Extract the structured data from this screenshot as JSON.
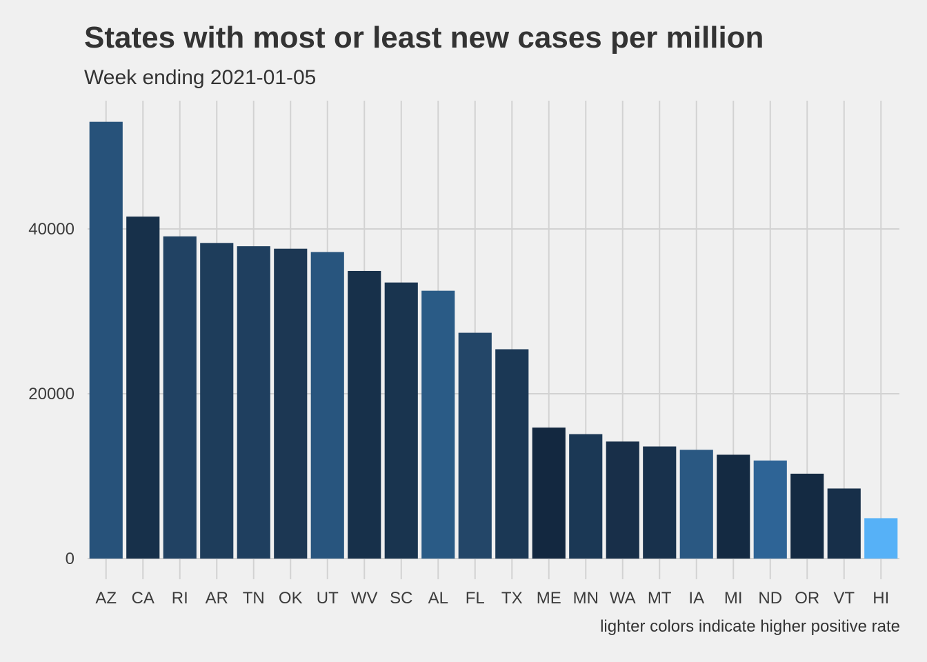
{
  "chart_data": {
    "type": "bar",
    "title": "States with most or least new cases per million",
    "subtitle": "Week ending 2021-01-05",
    "caption": "lighter colors indicate higher positive rate",
    "xlabel": "",
    "ylabel": "",
    "ylim": [
      0,
      54000
    ],
    "yticks": [
      0,
      20000,
      40000
    ],
    "grid": true,
    "categories": [
      "AZ",
      "CA",
      "RI",
      "AR",
      "TN",
      "OK",
      "UT",
      "WV",
      "SC",
      "AL",
      "FL",
      "TX",
      "ME",
      "MN",
      "WA",
      "MT",
      "IA",
      "MI",
      "ND",
      "OR",
      "VT",
      "HI"
    ],
    "values": [
      53000,
      41500,
      39100,
      38300,
      37900,
      37600,
      37200,
      34900,
      33500,
      32500,
      27400,
      25400,
      15900,
      15100,
      14200,
      13600,
      13200,
      12600,
      11900,
      10300,
      8500,
      4900
    ],
    "colors": [
      "#27527a",
      "#17304a",
      "#214263",
      "#1e3d5b",
      "#1f3f5f",
      "#1c3753",
      "#28557e",
      "#17304a",
      "#19344f",
      "#2a5b86",
      "#234668",
      "#1b3855",
      "#132840",
      "#1b3855",
      "#182f49",
      "#18314c",
      "#2a5882",
      "#142a42",
      "#2e6496",
      "#142a42",
      "#172f49",
      "#56b1f7"
    ]
  }
}
